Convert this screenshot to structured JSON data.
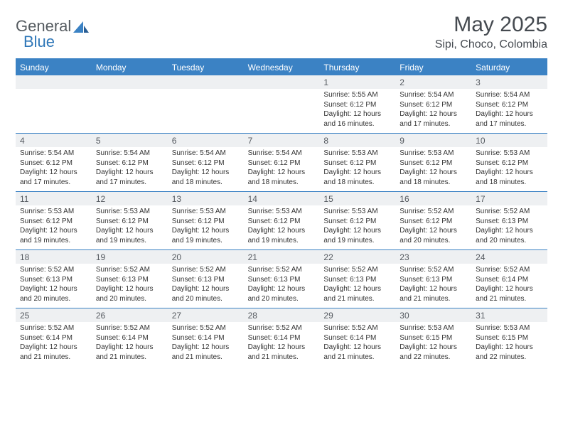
{
  "brand": {
    "general": "General",
    "blue": "Blue"
  },
  "title": "May 2025",
  "location": "Sipi, Choco, Colombia",
  "colors": {
    "header_bg": "#3b82c4",
    "band_bg": "#eef0f2",
    "text": "#333333",
    "title_text": "#454a50",
    "brand_gray": "#555b60",
    "brand_blue": "#2f77b8",
    "page_bg": "#ffffff"
  },
  "fonts": {
    "title_size_pt": 22,
    "location_size_pt": 12,
    "dayhead_size_pt": 9,
    "daynum_size_pt": 9,
    "details_size_pt": 7.5
  },
  "day_headers": [
    "Sunday",
    "Monday",
    "Tuesday",
    "Wednesday",
    "Thursday",
    "Friday",
    "Saturday"
  ],
  "weeks": [
    [
      {
        "num": "",
        "sunrise": "",
        "sunset": "",
        "daylight1": "",
        "daylight2": ""
      },
      {
        "num": "",
        "sunrise": "",
        "sunset": "",
        "daylight1": "",
        "daylight2": ""
      },
      {
        "num": "",
        "sunrise": "",
        "sunset": "",
        "daylight1": "",
        "daylight2": ""
      },
      {
        "num": "",
        "sunrise": "",
        "sunset": "",
        "daylight1": "",
        "daylight2": ""
      },
      {
        "num": "1",
        "sunrise": "Sunrise: 5:55 AM",
        "sunset": "Sunset: 6:12 PM",
        "daylight1": "Daylight: 12 hours",
        "daylight2": "and 16 minutes."
      },
      {
        "num": "2",
        "sunrise": "Sunrise: 5:54 AM",
        "sunset": "Sunset: 6:12 PM",
        "daylight1": "Daylight: 12 hours",
        "daylight2": "and 17 minutes."
      },
      {
        "num": "3",
        "sunrise": "Sunrise: 5:54 AM",
        "sunset": "Sunset: 6:12 PM",
        "daylight1": "Daylight: 12 hours",
        "daylight2": "and 17 minutes."
      }
    ],
    [
      {
        "num": "4",
        "sunrise": "Sunrise: 5:54 AM",
        "sunset": "Sunset: 6:12 PM",
        "daylight1": "Daylight: 12 hours",
        "daylight2": "and 17 minutes."
      },
      {
        "num": "5",
        "sunrise": "Sunrise: 5:54 AM",
        "sunset": "Sunset: 6:12 PM",
        "daylight1": "Daylight: 12 hours",
        "daylight2": "and 17 minutes."
      },
      {
        "num": "6",
        "sunrise": "Sunrise: 5:54 AM",
        "sunset": "Sunset: 6:12 PM",
        "daylight1": "Daylight: 12 hours",
        "daylight2": "and 18 minutes."
      },
      {
        "num": "7",
        "sunrise": "Sunrise: 5:54 AM",
        "sunset": "Sunset: 6:12 PM",
        "daylight1": "Daylight: 12 hours",
        "daylight2": "and 18 minutes."
      },
      {
        "num": "8",
        "sunrise": "Sunrise: 5:53 AM",
        "sunset": "Sunset: 6:12 PM",
        "daylight1": "Daylight: 12 hours",
        "daylight2": "and 18 minutes."
      },
      {
        "num": "9",
        "sunrise": "Sunrise: 5:53 AM",
        "sunset": "Sunset: 6:12 PM",
        "daylight1": "Daylight: 12 hours",
        "daylight2": "and 18 minutes."
      },
      {
        "num": "10",
        "sunrise": "Sunrise: 5:53 AM",
        "sunset": "Sunset: 6:12 PM",
        "daylight1": "Daylight: 12 hours",
        "daylight2": "and 18 minutes."
      }
    ],
    [
      {
        "num": "11",
        "sunrise": "Sunrise: 5:53 AM",
        "sunset": "Sunset: 6:12 PM",
        "daylight1": "Daylight: 12 hours",
        "daylight2": "and 19 minutes."
      },
      {
        "num": "12",
        "sunrise": "Sunrise: 5:53 AM",
        "sunset": "Sunset: 6:12 PM",
        "daylight1": "Daylight: 12 hours",
        "daylight2": "and 19 minutes."
      },
      {
        "num": "13",
        "sunrise": "Sunrise: 5:53 AM",
        "sunset": "Sunset: 6:12 PM",
        "daylight1": "Daylight: 12 hours",
        "daylight2": "and 19 minutes."
      },
      {
        "num": "14",
        "sunrise": "Sunrise: 5:53 AM",
        "sunset": "Sunset: 6:12 PM",
        "daylight1": "Daylight: 12 hours",
        "daylight2": "and 19 minutes."
      },
      {
        "num": "15",
        "sunrise": "Sunrise: 5:53 AM",
        "sunset": "Sunset: 6:12 PM",
        "daylight1": "Daylight: 12 hours",
        "daylight2": "and 19 minutes."
      },
      {
        "num": "16",
        "sunrise": "Sunrise: 5:52 AM",
        "sunset": "Sunset: 6:12 PM",
        "daylight1": "Daylight: 12 hours",
        "daylight2": "and 20 minutes."
      },
      {
        "num": "17",
        "sunrise": "Sunrise: 5:52 AM",
        "sunset": "Sunset: 6:13 PM",
        "daylight1": "Daylight: 12 hours",
        "daylight2": "and 20 minutes."
      }
    ],
    [
      {
        "num": "18",
        "sunrise": "Sunrise: 5:52 AM",
        "sunset": "Sunset: 6:13 PM",
        "daylight1": "Daylight: 12 hours",
        "daylight2": "and 20 minutes."
      },
      {
        "num": "19",
        "sunrise": "Sunrise: 5:52 AM",
        "sunset": "Sunset: 6:13 PM",
        "daylight1": "Daylight: 12 hours",
        "daylight2": "and 20 minutes."
      },
      {
        "num": "20",
        "sunrise": "Sunrise: 5:52 AM",
        "sunset": "Sunset: 6:13 PM",
        "daylight1": "Daylight: 12 hours",
        "daylight2": "and 20 minutes."
      },
      {
        "num": "21",
        "sunrise": "Sunrise: 5:52 AM",
        "sunset": "Sunset: 6:13 PM",
        "daylight1": "Daylight: 12 hours",
        "daylight2": "and 20 minutes."
      },
      {
        "num": "22",
        "sunrise": "Sunrise: 5:52 AM",
        "sunset": "Sunset: 6:13 PM",
        "daylight1": "Daylight: 12 hours",
        "daylight2": "and 21 minutes."
      },
      {
        "num": "23",
        "sunrise": "Sunrise: 5:52 AM",
        "sunset": "Sunset: 6:13 PM",
        "daylight1": "Daylight: 12 hours",
        "daylight2": "and 21 minutes."
      },
      {
        "num": "24",
        "sunrise": "Sunrise: 5:52 AM",
        "sunset": "Sunset: 6:14 PM",
        "daylight1": "Daylight: 12 hours",
        "daylight2": "and 21 minutes."
      }
    ],
    [
      {
        "num": "25",
        "sunrise": "Sunrise: 5:52 AM",
        "sunset": "Sunset: 6:14 PM",
        "daylight1": "Daylight: 12 hours",
        "daylight2": "and 21 minutes."
      },
      {
        "num": "26",
        "sunrise": "Sunrise: 5:52 AM",
        "sunset": "Sunset: 6:14 PM",
        "daylight1": "Daylight: 12 hours",
        "daylight2": "and 21 minutes."
      },
      {
        "num": "27",
        "sunrise": "Sunrise: 5:52 AM",
        "sunset": "Sunset: 6:14 PM",
        "daylight1": "Daylight: 12 hours",
        "daylight2": "and 21 minutes."
      },
      {
        "num": "28",
        "sunrise": "Sunrise: 5:52 AM",
        "sunset": "Sunset: 6:14 PM",
        "daylight1": "Daylight: 12 hours",
        "daylight2": "and 21 minutes."
      },
      {
        "num": "29",
        "sunrise": "Sunrise: 5:52 AM",
        "sunset": "Sunset: 6:14 PM",
        "daylight1": "Daylight: 12 hours",
        "daylight2": "and 21 minutes."
      },
      {
        "num": "30",
        "sunrise": "Sunrise: 5:53 AM",
        "sunset": "Sunset: 6:15 PM",
        "daylight1": "Daylight: 12 hours",
        "daylight2": "and 22 minutes."
      },
      {
        "num": "31",
        "sunrise": "Sunrise: 5:53 AM",
        "sunset": "Sunset: 6:15 PM",
        "daylight1": "Daylight: 12 hours",
        "daylight2": "and 22 minutes."
      }
    ]
  ]
}
